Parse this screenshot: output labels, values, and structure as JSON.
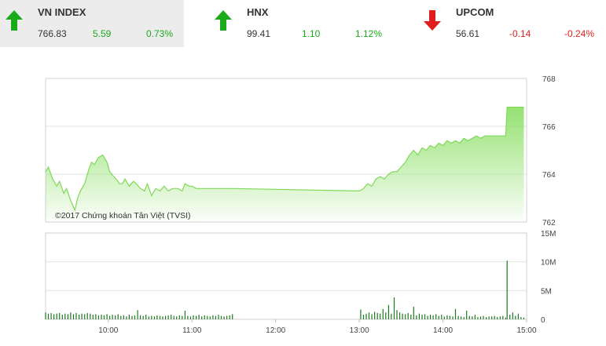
{
  "indices": [
    {
      "name": "VN INDEX",
      "value": "766.83",
      "change": "5.59",
      "percent": "0.73%",
      "direction": "up",
      "color": "#1aab1a"
    },
    {
      "name": "HNX",
      "value": "99.41",
      "change": "1.10",
      "percent": "1.12%",
      "direction": "up",
      "color": "#1aab1a"
    },
    {
      "name": "UPCOM",
      "value": "56.61",
      "change": "-0.14",
      "percent": "-0.24%",
      "direction": "down",
      "color": "#e01e1e"
    }
  ],
  "chart_data": [
    {
      "type": "area",
      "copyright": "©2017 Chứng khoán Tân Việt (TVSI)",
      "yticks": [
        "768",
        "766",
        "764",
        "762"
      ],
      "ylim": [
        762,
        768
      ],
      "xlim": [
        "09:15",
        "15:00"
      ],
      "color": "#7ed957",
      "x": [
        "09:15",
        "09:17",
        "09:20",
        "09:23",
        "09:25",
        "09:28",
        "09:30",
        "09:33",
        "09:36",
        "09:38",
        "09:40",
        "09:43",
        "09:46",
        "09:48",
        "09:50",
        "09:53",
        "09:56",
        "09:59",
        "10:01",
        "10:04",
        "10:07",
        "10:08",
        "10:10",
        "10:12",
        "10:15",
        "10:18",
        "10:20",
        "10:23",
        "10:26",
        "10:28",
        "10:31",
        "10:34",
        "10:37",
        "10:40",
        "10:43",
        "10:46",
        "10:50",
        "10:53",
        "10:55",
        "10:58",
        "11:00",
        "11:03",
        "11:06",
        "11:09",
        "11:12",
        "11:15",
        "11:18",
        "11:21",
        "11:24",
        "11:27",
        "11:30",
        "13:00",
        "13:03",
        "13:06",
        "13:09",
        "13:12",
        "13:15",
        "13:18",
        "13:21",
        "13:24",
        "13:27",
        "13:30",
        "13:33",
        "13:36",
        "13:39",
        "13:42",
        "13:45",
        "13:48",
        "13:51",
        "13:54",
        "13:57",
        "14:00",
        "14:03",
        "14:06",
        "14:09",
        "14:12",
        "14:15",
        "14:18",
        "14:21",
        "14:24",
        "14:27",
        "14:30",
        "14:33",
        "14:36",
        "14:39",
        "14:42",
        "14:45",
        "14:46",
        "14:50",
        "14:58"
      ],
      "values": [
        764.1,
        764.3,
        763.8,
        763.5,
        763.7,
        763.2,
        763.4,
        762.9,
        762.5,
        763.0,
        763.3,
        763.6,
        764.2,
        764.5,
        764.4,
        764.7,
        764.8,
        764.5,
        764.1,
        763.9,
        763.7,
        763.6,
        763.6,
        763.8,
        763.5,
        763.7,
        763.6,
        763.4,
        763.3,
        763.6,
        763.1,
        763.4,
        763.3,
        763.5,
        763.3,
        763.4,
        763.4,
        763.3,
        763.6,
        763.5,
        763.5,
        763.4,
        763.4,
        763.4,
        763.4,
        763.4,
        763.4,
        763.4,
        763.4,
        763.4,
        763.4,
        763.3,
        763.4,
        763.6,
        763.5,
        763.8,
        763.9,
        763.8,
        764.0,
        764.1,
        764.1,
        764.3,
        764.5,
        764.8,
        765.0,
        764.8,
        765.1,
        765.0,
        765.2,
        765.1,
        765.3,
        765.2,
        765.4,
        765.3,
        765.4,
        765.3,
        765.5,
        765.4,
        765.5,
        765.6,
        765.5,
        765.6,
        765.6,
        765.6,
        765.6,
        765.6,
        765.6,
        766.8,
        766.8,
        766.8
      ]
    },
    {
      "type": "bar",
      "yticks": [
        "15M",
        "10M",
        "5M",
        "0"
      ],
      "ylim": [
        0,
        15
      ],
      "unit": "M",
      "xticks": [
        "10:00",
        "11:00",
        "12:00",
        "13:00",
        "14:00",
        "15:00"
      ],
      "color": "#1e7a1e",
      "x": [
        "09:15",
        "09:17",
        "09:19",
        "09:21",
        "09:23",
        "09:25",
        "09:27",
        "09:29",
        "09:31",
        "09:33",
        "09:35",
        "09:37",
        "09:39",
        "09:41",
        "09:43",
        "09:45",
        "09:47",
        "09:49",
        "09:51",
        "09:53",
        "09:55",
        "09:57",
        "09:59",
        "10:01",
        "10:03",
        "10:05",
        "10:07",
        "10:09",
        "10:11",
        "10:13",
        "10:15",
        "10:17",
        "10:19",
        "10:21",
        "10:23",
        "10:25",
        "10:27",
        "10:29",
        "10:31",
        "10:33",
        "10:35",
        "10:37",
        "10:39",
        "10:41",
        "10:43",
        "10:45",
        "10:47",
        "10:49",
        "10:51",
        "10:53",
        "10:55",
        "10:57",
        "10:59",
        "11:01",
        "11:03",
        "11:05",
        "11:07",
        "11:09",
        "11:11",
        "11:13",
        "11:15",
        "11:17",
        "11:19",
        "11:21",
        "11:23",
        "11:25",
        "11:27",
        "11:29",
        "13:01",
        "13:03",
        "13:05",
        "13:07",
        "13:09",
        "13:11",
        "13:13",
        "13:15",
        "13:17",
        "13:19",
        "13:21",
        "13:23",
        "13:25",
        "13:27",
        "13:29",
        "13:31",
        "13:33",
        "13:35",
        "13:37",
        "13:39",
        "13:41",
        "13:43",
        "13:45",
        "13:47",
        "13:49",
        "13:51",
        "13:53",
        "13:55",
        "13:57",
        "13:59",
        "14:01",
        "14:03",
        "14:05",
        "14:07",
        "14:09",
        "14:11",
        "14:13",
        "14:15",
        "14:17",
        "14:19",
        "14:21",
        "14:23",
        "14:25",
        "14:27",
        "14:29",
        "14:31",
        "14:33",
        "14:35",
        "14:37",
        "14:39",
        "14:41",
        "14:43",
        "14:45",
        "14:46",
        "14:48",
        "14:50",
        "14:52",
        "14:54",
        "14:56",
        "14:58"
      ],
      "values": [
        1.2,
        1.0,
        1.1,
        0.9,
        1.0,
        1.1,
        0.8,
        1.0,
        0.9,
        1.2,
        0.9,
        1.1,
        0.8,
        1.0,
        0.9,
        1.1,
        1.0,
        0.8,
        0.9,
        0.7,
        0.8,
        0.7,
        0.9,
        0.6,
        0.8,
        0.7,
        0.9,
        0.6,
        0.7,
        0.5,
        0.8,
        0.6,
        0.7,
        1.6,
        0.7,
        0.6,
        0.8,
        0.5,
        0.6,
        0.5,
        0.7,
        0.6,
        0.5,
        0.6,
        0.7,
        0.8,
        0.6,
        0.5,
        0.7,
        0.6,
        1.5,
        0.6,
        0.5,
        0.7,
        0.6,
        0.8,
        0.5,
        0.7,
        0.6,
        0.5,
        0.7,
        0.6,
        0.8,
        0.6,
        0.5,
        0.6,
        0.7,
        0.9,
        1.7,
        0.8,
        1.0,
        1.2,
        0.9,
        1.3,
        1.1,
        1.0,
        1.8,
        1.2,
        2.5,
        1.0,
        3.8,
        1.6,
        1.2,
        1.0,
        0.9,
        1.1,
        0.8,
        2.2,
        0.7,
        1.0,
        0.8,
        0.9,
        0.6,
        0.8,
        0.7,
        0.9,
        0.6,
        0.8,
        0.5,
        0.7,
        0.6,
        0.5,
        1.8,
        0.6,
        0.5,
        0.4,
        1.5,
        0.6,
        0.5,
        0.8,
        0.4,
        0.5,
        0.6,
        0.4,
        0.5,
        0.5,
        0.6,
        0.4,
        0.5,
        0.6,
        0.3,
        10.2,
        0.8,
        1.2,
        0.6,
        1.0,
        0.4,
        0.3
      ]
    }
  ]
}
